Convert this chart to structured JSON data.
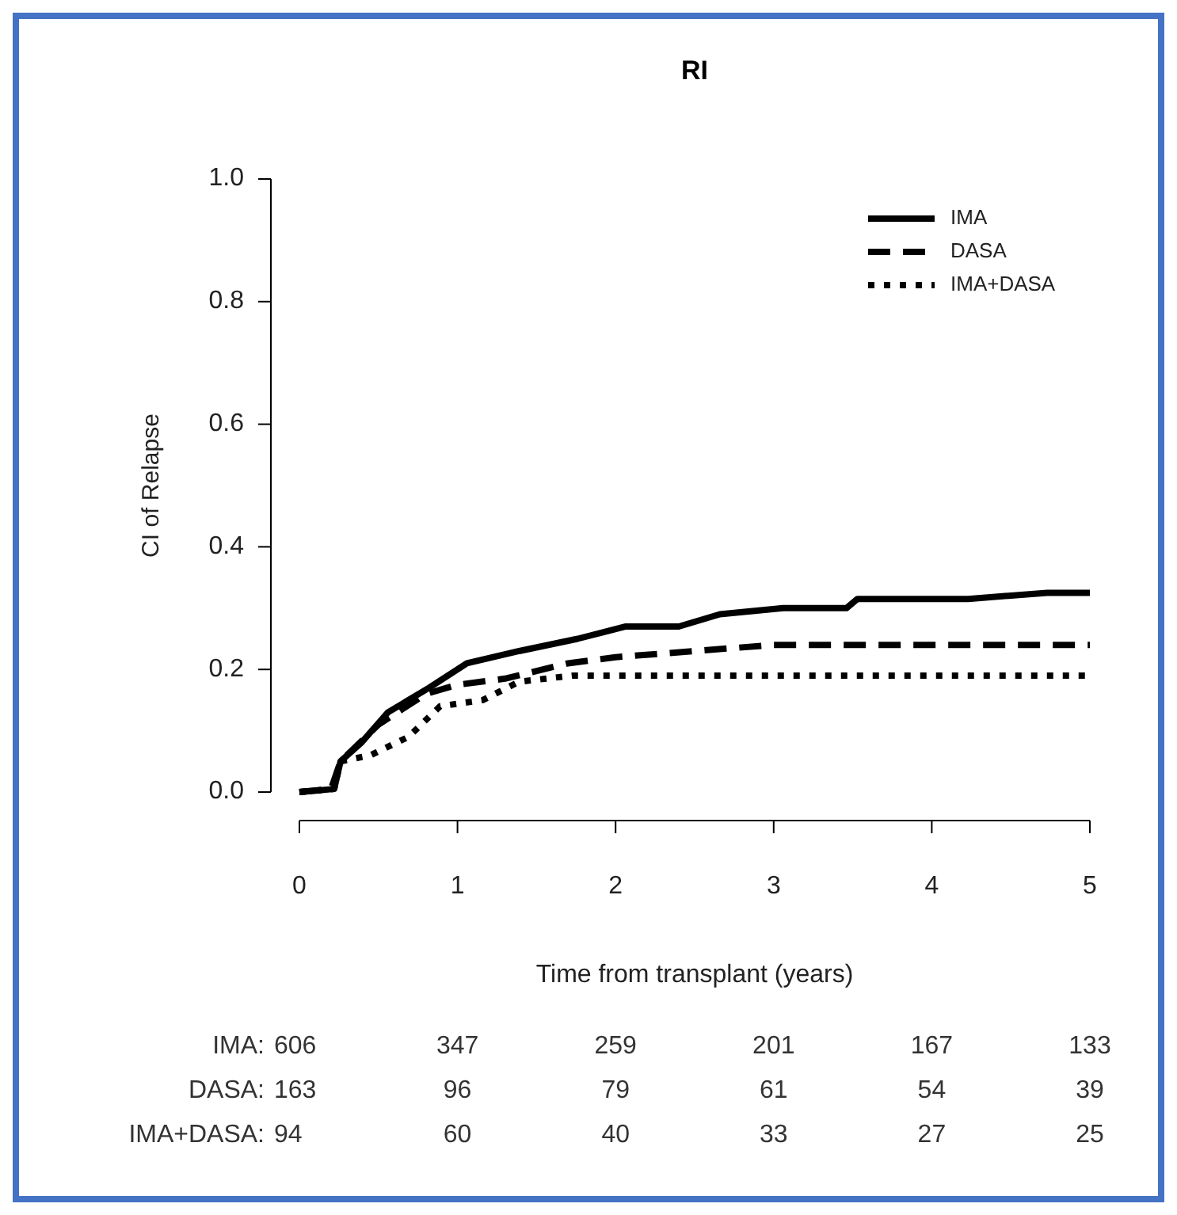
{
  "chart_data": {
    "type": "line",
    "title": "RI",
    "xlabel": "Time from transplant (years)",
    "ylabel": "CI of Relapse",
    "xlim": [
      0,
      5
    ],
    "ylim": [
      0,
      1
    ],
    "xticks": [
      0,
      1,
      2,
      3,
      4,
      5
    ],
    "yticks": [
      {
        "value": 0,
        "label": "0.0"
      },
      {
        "value": 0.2,
        "label": "0.2"
      },
      {
        "value": 0.4,
        "label": "0.4"
      },
      {
        "value": 0.6,
        "label": "0.6"
      },
      {
        "value": 0.8,
        "label": "0.8"
      },
      {
        "value": 1,
        "label": "1.0"
      }
    ],
    "grid": false,
    "legend": "top right",
    "series": [
      {
        "name": "IMA",
        "color": "#000000",
        "line_style": "solid",
        "x": [
          0,
          0.22,
          0.26,
          0.39,
          0.56,
          0.82,
          1.06,
          1.39,
          1.76,
          2.06,
          2.4,
          2.66,
          3.06,
          3.46,
          3.53,
          4.23,
          4.73,
          5
        ],
        "values": [
          0,
          0.005,
          0.05,
          0.08,
          0.13,
          0.17,
          0.21,
          0.23,
          0.25,
          0.27,
          0.27,
          0.29,
          0.3,
          0.3,
          0.315,
          0.315,
          0.325,
          0.325
        ]
      },
      {
        "name": "DASA",
        "color": "#000000",
        "line_style": "dashed",
        "x": [
          0,
          0.2,
          0.26,
          0.5,
          0.8,
          1,
          1.3,
          1.7,
          2,
          2.5,
          3,
          5
        ],
        "values": [
          0,
          0.005,
          0.05,
          0.11,
          0.16,
          0.175,
          0.185,
          0.21,
          0.22,
          0.23,
          0.24,
          0.24
        ]
      },
      {
        "name": "IMA+DASA",
        "color": "#000000",
        "line_style": "dotted",
        "x": [
          0,
          0.22,
          0.26,
          0.45,
          0.69,
          0.89,
          1.16,
          1.39,
          1.73,
          5
        ],
        "values": [
          0,
          0.005,
          0.05,
          0.06,
          0.09,
          0.14,
          0.15,
          0.18,
          0.19,
          0.19
        ]
      }
    ],
    "annotations": [
      "IMA: 606 347 259 201 167 133",
      "DASA: 163 96 79 61 54 39",
      "IMA+DASA: 94 60 40 33 27 25"
    ]
  }
}
